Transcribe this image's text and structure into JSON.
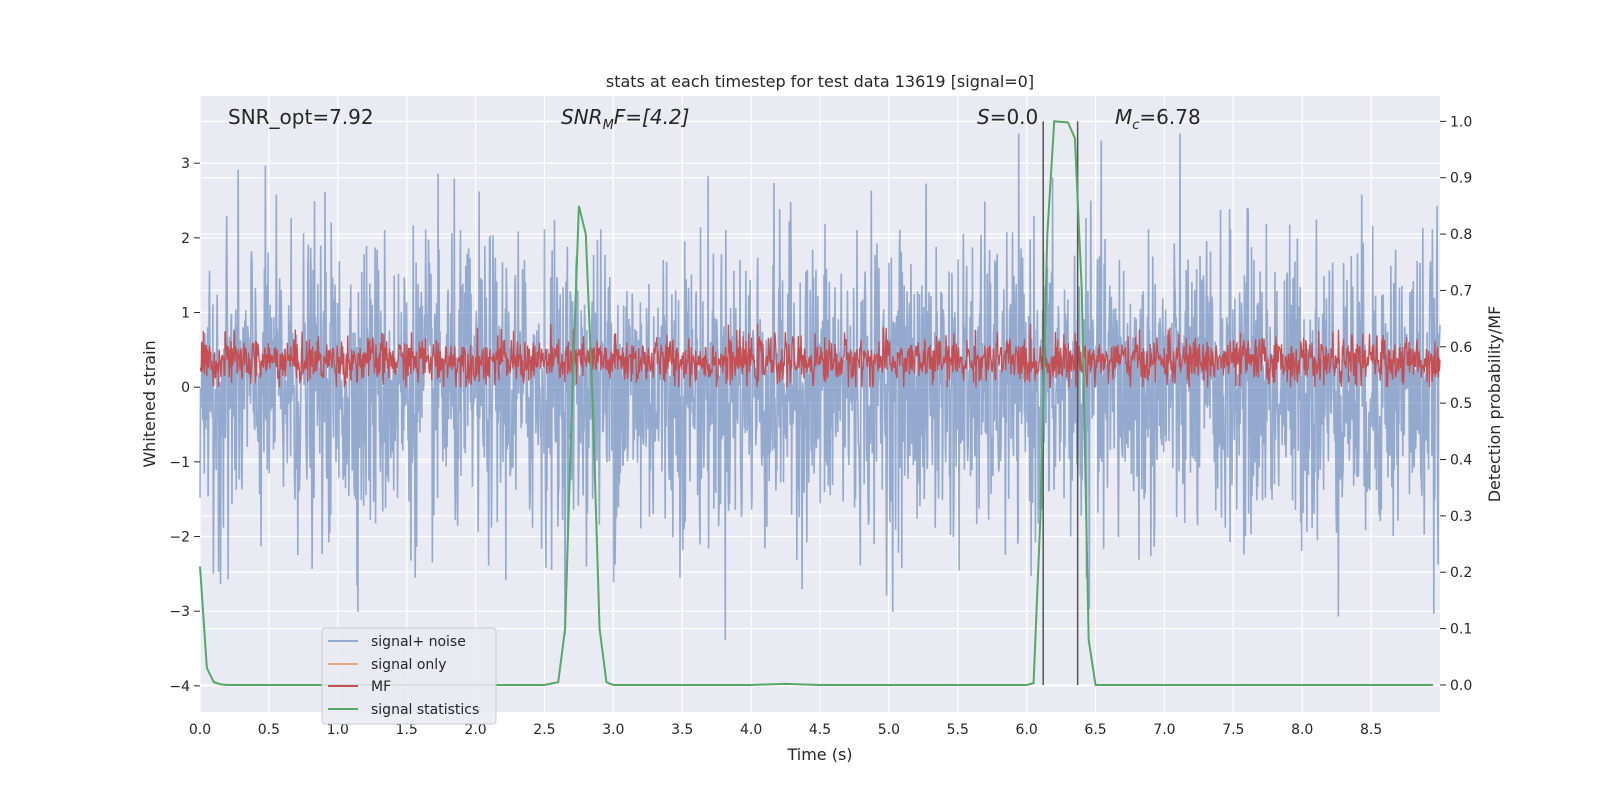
{
  "chart_data": {
    "type": "line",
    "title": "stats at each timestep for test data 13619 [signal=0]",
    "xlabel": "Time (s)",
    "ylabel": "Whitened strain",
    "ylabel_right": "Detection probability/MF",
    "xlim": [
      0.0,
      9.0
    ],
    "ylim": [
      -4.35,
      3.9
    ],
    "ylim_right": [
      -0.048,
      1.045
    ],
    "xticks": [
      "0.0",
      "0.5",
      "1.0",
      "1.5",
      "2.0",
      "2.5",
      "3.0",
      "3.5",
      "4.0",
      "4.5",
      "5.0",
      "5.5",
      "6.0",
      "6.5",
      "7.0",
      "7.5",
      "8.0",
      "8.5"
    ],
    "xtick_values": [
      0.0,
      0.5,
      1.0,
      1.5,
      2.0,
      2.5,
      3.0,
      3.5,
      4.0,
      4.5,
      5.0,
      5.5,
      6.0,
      6.5,
      7.0,
      7.5,
      8.0,
      8.5
    ],
    "yticks": [
      "3",
      "2",
      "1",
      "0",
      "−1",
      "−2",
      "−3",
      "−4"
    ],
    "ytick_values": [
      3,
      2,
      1,
      0,
      -1,
      -2,
      -3,
      -4
    ],
    "yticks_right": [
      "1.0",
      "0.9",
      "0.8",
      "0.7",
      "0.6",
      "0.5",
      "0.4",
      "0.3",
      "0.2",
      "0.1",
      "0.0"
    ],
    "ytick_right_values": [
      1.0,
      0.9,
      0.8,
      0.7,
      0.6,
      0.5,
      0.4,
      0.3,
      0.2,
      0.1,
      0.0
    ],
    "grid": true,
    "legend_position": "lower-left",
    "annotations": {
      "snr_opt": "SNR_opt=7.92",
      "snr_mf_main": "SNR",
      "snr_mf_sub": "M",
      "snr_mf_rest": "F=[4.2]",
      "s_main": "S",
      "s_rest": "=0.0",
      "mc_main": "M",
      "mc_sub": "c",
      "mc_rest": "=6.78"
    },
    "series": [
      {
        "name": "signal+ noise",
        "color": "#4c72b0",
        "axis": "left",
        "kind": "noise",
        "x_range": [
          0.0,
          9.0
        ],
        "typical_amplitude": 1.0,
        "peak_range": [
          -4.0,
          3.4
        ]
      },
      {
        "name": "signal only",
        "color": "#dd8452",
        "axis": "left",
        "kind": "flat",
        "values": []
      },
      {
        "name": "MF",
        "color": "#c44e52",
        "axis": "left",
        "kind": "band",
        "x_range": [
          0.0,
          9.0
        ],
        "range": [
          0.0,
          0.85
        ]
      },
      {
        "name": "signal statistics",
        "color": "#55a868",
        "axis": "right",
        "kind": "line",
        "x": [
          0.0,
          0.05,
          0.1,
          0.15,
          0.2,
          0.3,
          0.5,
          1.0,
          1.5,
          2.0,
          2.5,
          2.6,
          2.65,
          2.7,
          2.75,
          2.8,
          2.85,
          2.9,
          2.95,
          3.0,
          3.5,
          4.0,
          4.25,
          4.5,
          5.0,
          5.5,
          6.0,
          6.05,
          6.1,
          6.15,
          6.2,
          6.3,
          6.35,
          6.4,
          6.45,
          6.5,
          6.55,
          7.0,
          7.5,
          8.0,
          8.5,
          8.95
        ],
        "values": [
          0.21,
          0.03,
          0.005,
          0.001,
          0.0,
          0.0,
          0.0,
          0.0,
          0.0,
          0.0,
          0.0,
          0.005,
          0.1,
          0.5,
          0.85,
          0.8,
          0.5,
          0.1,
          0.005,
          0.0,
          0.0,
          0.0,
          0.002,
          0.0,
          0.0,
          0.0,
          0.0,
          0.003,
          0.3,
          0.8,
          1.0,
          0.998,
          0.97,
          0.7,
          0.08,
          0.0,
          0.0,
          0.0,
          0.0,
          0.0,
          0.0,
          0.0
        ]
      }
    ],
    "vertical_markers": {
      "color": "#555555",
      "x": [
        6.12,
        6.37
      ],
      "y_right": [
        0.0,
        1.0
      ]
    }
  }
}
